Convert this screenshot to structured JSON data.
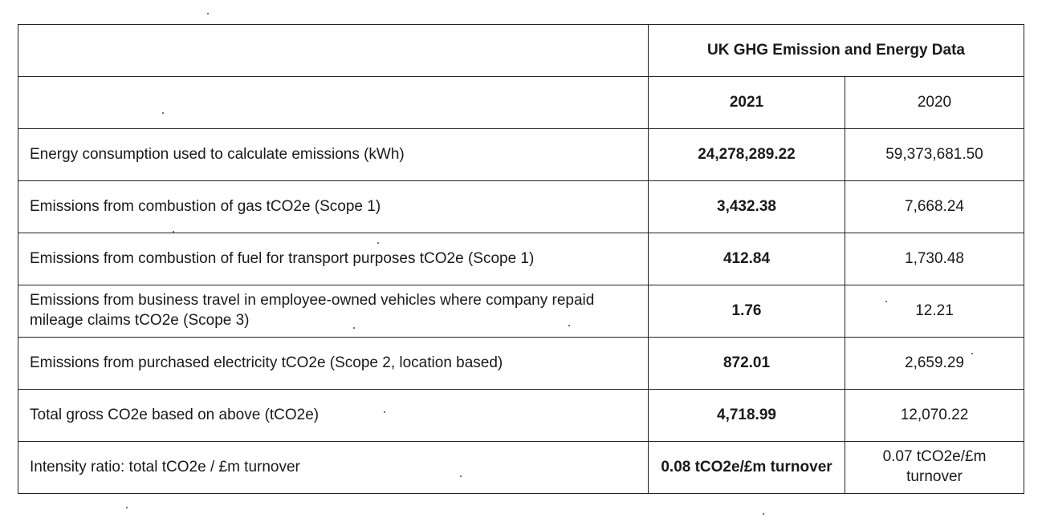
{
  "table": {
    "title": "UK GHG Emission and Energy Data",
    "columns": {
      "label": "",
      "year_current": "2021",
      "year_prior": "2020"
    },
    "rows": [
      {
        "label": "Energy consumption used to calculate emissions (kWh)",
        "val_2021": "24,278,289.22",
        "val_2020": "59,373,681.50"
      },
      {
        "label": "Emissions from combustion of gas tCO2e (Scope 1)",
        "val_2021": "3,432.38",
        "val_2020": "7,668.24"
      },
      {
        "label": "Emissions from combustion of fuel for transport purposes tCO2e (Scope 1)",
        "val_2021": "412.84",
        "val_2020": "1,730.48"
      },
      {
        "label": "Emissions from business travel in employee-owned vehicles where company repaid mileage claims tCO2e (Scope 3)",
        "val_2021": "1.76",
        "val_2020": "12.21"
      },
      {
        "label": "Emissions from purchased electricity tCO2e (Scope 2, location based)",
        "val_2021": "872.01",
        "val_2020": "2,659.29"
      },
      {
        "label": "Total gross CO2e based on above (tCO2e)",
        "val_2021": "4,718.99",
        "val_2020": "12,070.22"
      },
      {
        "label": "Intensity ratio: total tCO2e / £m turnover",
        "val_2021": "0.08 tCO2e/£m turnover",
        "val_2020": "0.07 tCO2e/£m turnover"
      }
    ]
  }
}
